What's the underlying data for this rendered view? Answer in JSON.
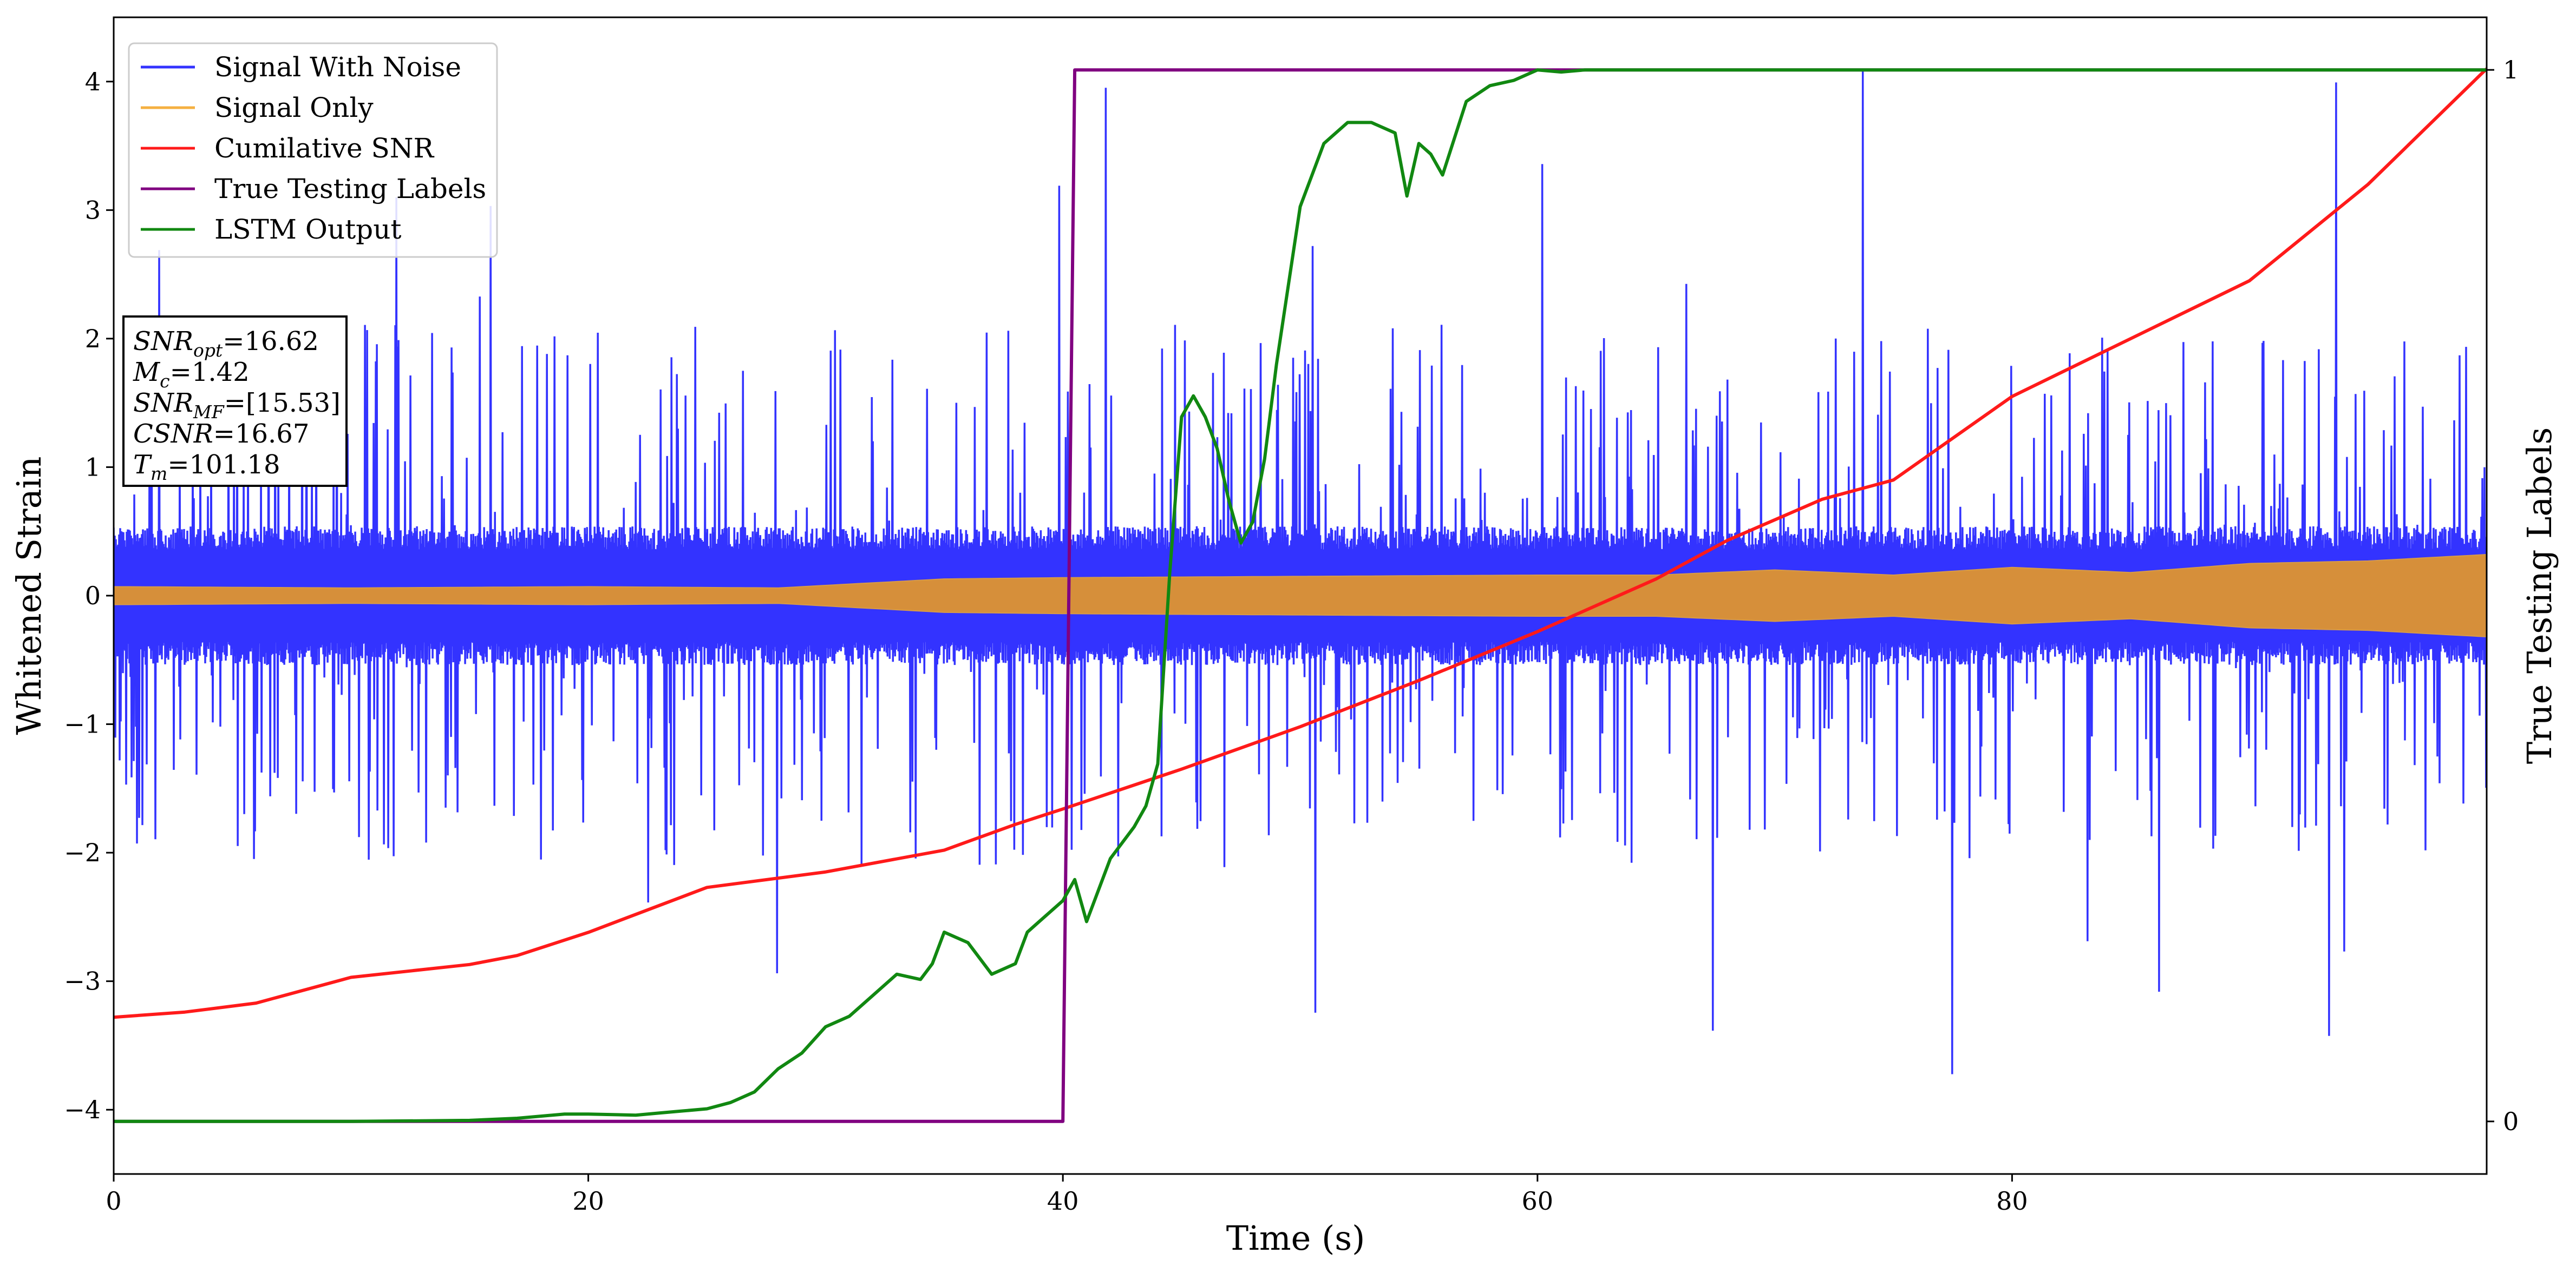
{
  "chart_data": {
    "type": "line",
    "title": "",
    "xlabel": "Time (s)",
    "ylabel": "Whitened Strain",
    "y2label": "True Testing Labels",
    "xlim": [
      0,
      100
    ],
    "ylim": [
      -4.5,
      4.5
    ],
    "y2lim": [
      -0.05,
      1.05
    ],
    "xticks": [
      0,
      20,
      40,
      60,
      80
    ],
    "yticks": [
      -4,
      -3,
      -2,
      -1,
      0,
      1,
      2,
      3,
      4
    ],
    "y2ticks": [
      0,
      1
    ],
    "grid": false,
    "legend_position": "top-left",
    "legend": [
      {
        "name": "Signal With Noise",
        "color": "#3333ff"
      },
      {
        "name": "Signal Only",
        "color": "#f5b041"
      },
      {
        "name": "Cumilative SNR",
        "color": "#ff1a1a"
      },
      {
        "name": "True Testing Labels",
        "color": "#800080"
      },
      {
        "name": "LSTM Output",
        "color": "#118811"
      }
    ],
    "series": [
      {
        "name": "Signal With Noise",
        "axis": "left",
        "style": "noise band",
        "core_amplitude": 0.45,
        "typical_spike": 1.9,
        "max_abs": 4.1
      },
      {
        "name": "Signal Only",
        "axis": "left",
        "style": "filled oscillation",
        "envelope": {
          "x": [
            0,
            10,
            20,
            28,
            35,
            40,
            50,
            60,
            65,
            70,
            75,
            80,
            85,
            90,
            95,
            100
          ],
          "y": [
            0.07,
            0.06,
            0.07,
            0.06,
            0.13,
            0.14,
            0.15,
            0.16,
            0.16,
            0.2,
            0.16,
            0.22,
            0.18,
            0.25,
            0.27,
            0.32
          ]
        }
      },
      {
        "name": "Cumilative SNR",
        "axis": "left",
        "x": [
          0,
          3,
          6,
          10,
          15,
          17,
          20,
          25,
          30,
          35,
          38,
          40,
          45,
          50,
          55,
          60,
          65,
          68,
          72,
          75,
          80,
          85,
          90,
          95,
          100
        ],
        "y": [
          -3.28,
          -3.24,
          -3.17,
          -2.97,
          -2.87,
          -2.8,
          -2.62,
          -2.27,
          -2.15,
          -1.98,
          -1.78,
          -1.66,
          -1.35,
          -1.02,
          -0.66,
          -0.28,
          0.13,
          0.43,
          0.75,
          0.9,
          1.55,
          2.0,
          2.45,
          3.2,
          4.1
        ]
      },
      {
        "name": "True Testing Labels",
        "axis": "right",
        "x": [
          0,
          40.0,
          40.5,
          100
        ],
        "y": [
          0,
          0,
          1,
          1
        ]
      },
      {
        "name": "LSTM Output",
        "axis": "right",
        "x": [
          0,
          10,
          15,
          17,
          19,
          20,
          22,
          23,
          24,
          25,
          26,
          27,
          28,
          29,
          30,
          31,
          32,
          33,
          34,
          34.5,
          35,
          35.5,
          36,
          37,
          38,
          38.5,
          39,
          40,
          40.5,
          41,
          42,
          43,
          43.5,
          44,
          44.5,
          45,
          45.5,
          46,
          46.5,
          47,
          47.5,
          48,
          48.5,
          49,
          50,
          51,
          52,
          53,
          54,
          54.5,
          55,
          55.5,
          56,
          57,
          58,
          59,
          60,
          61,
          62,
          63,
          65,
          70,
          100
        ],
        "y": [
          0,
          0,
          0.001,
          0.003,
          0.007,
          0.007,
          0.006,
          0.008,
          0.01,
          0.012,
          0.018,
          0.028,
          0.05,
          0.065,
          0.09,
          0.1,
          0.12,
          0.14,
          0.135,
          0.15,
          0.18,
          0.175,
          0.17,
          0.14,
          0.15,
          0.18,
          0.19,
          0.21,
          0.23,
          0.19,
          0.25,
          0.28,
          0.3,
          0.34,
          0.52,
          0.67,
          0.69,
          0.67,
          0.64,
          0.59,
          0.55,
          0.57,
          0.63,
          0.72,
          0.87,
          0.93,
          0.95,
          0.95,
          0.94,
          0.88,
          0.93,
          0.92,
          0.9,
          0.97,
          0.985,
          0.99,
          1.0,
          0.998,
          1.0,
          1.0,
          1.0,
          1.0,
          1.0
        ]
      }
    ],
    "annotation": {
      "lines": [
        {
          "label": "SNR",
          "sub": "opt",
          "value": "=16.62"
        },
        {
          "label": "M",
          "sub": "c",
          "value": "=1.42"
        },
        {
          "label": "SNR",
          "sub": "MF",
          "value": "=[15.53]"
        },
        {
          "label": "CSNR",
          "sub": "",
          "value": "=16.67"
        },
        {
          "label": "T",
          "sub": "m",
          "value": "=101.18"
        }
      ]
    }
  }
}
